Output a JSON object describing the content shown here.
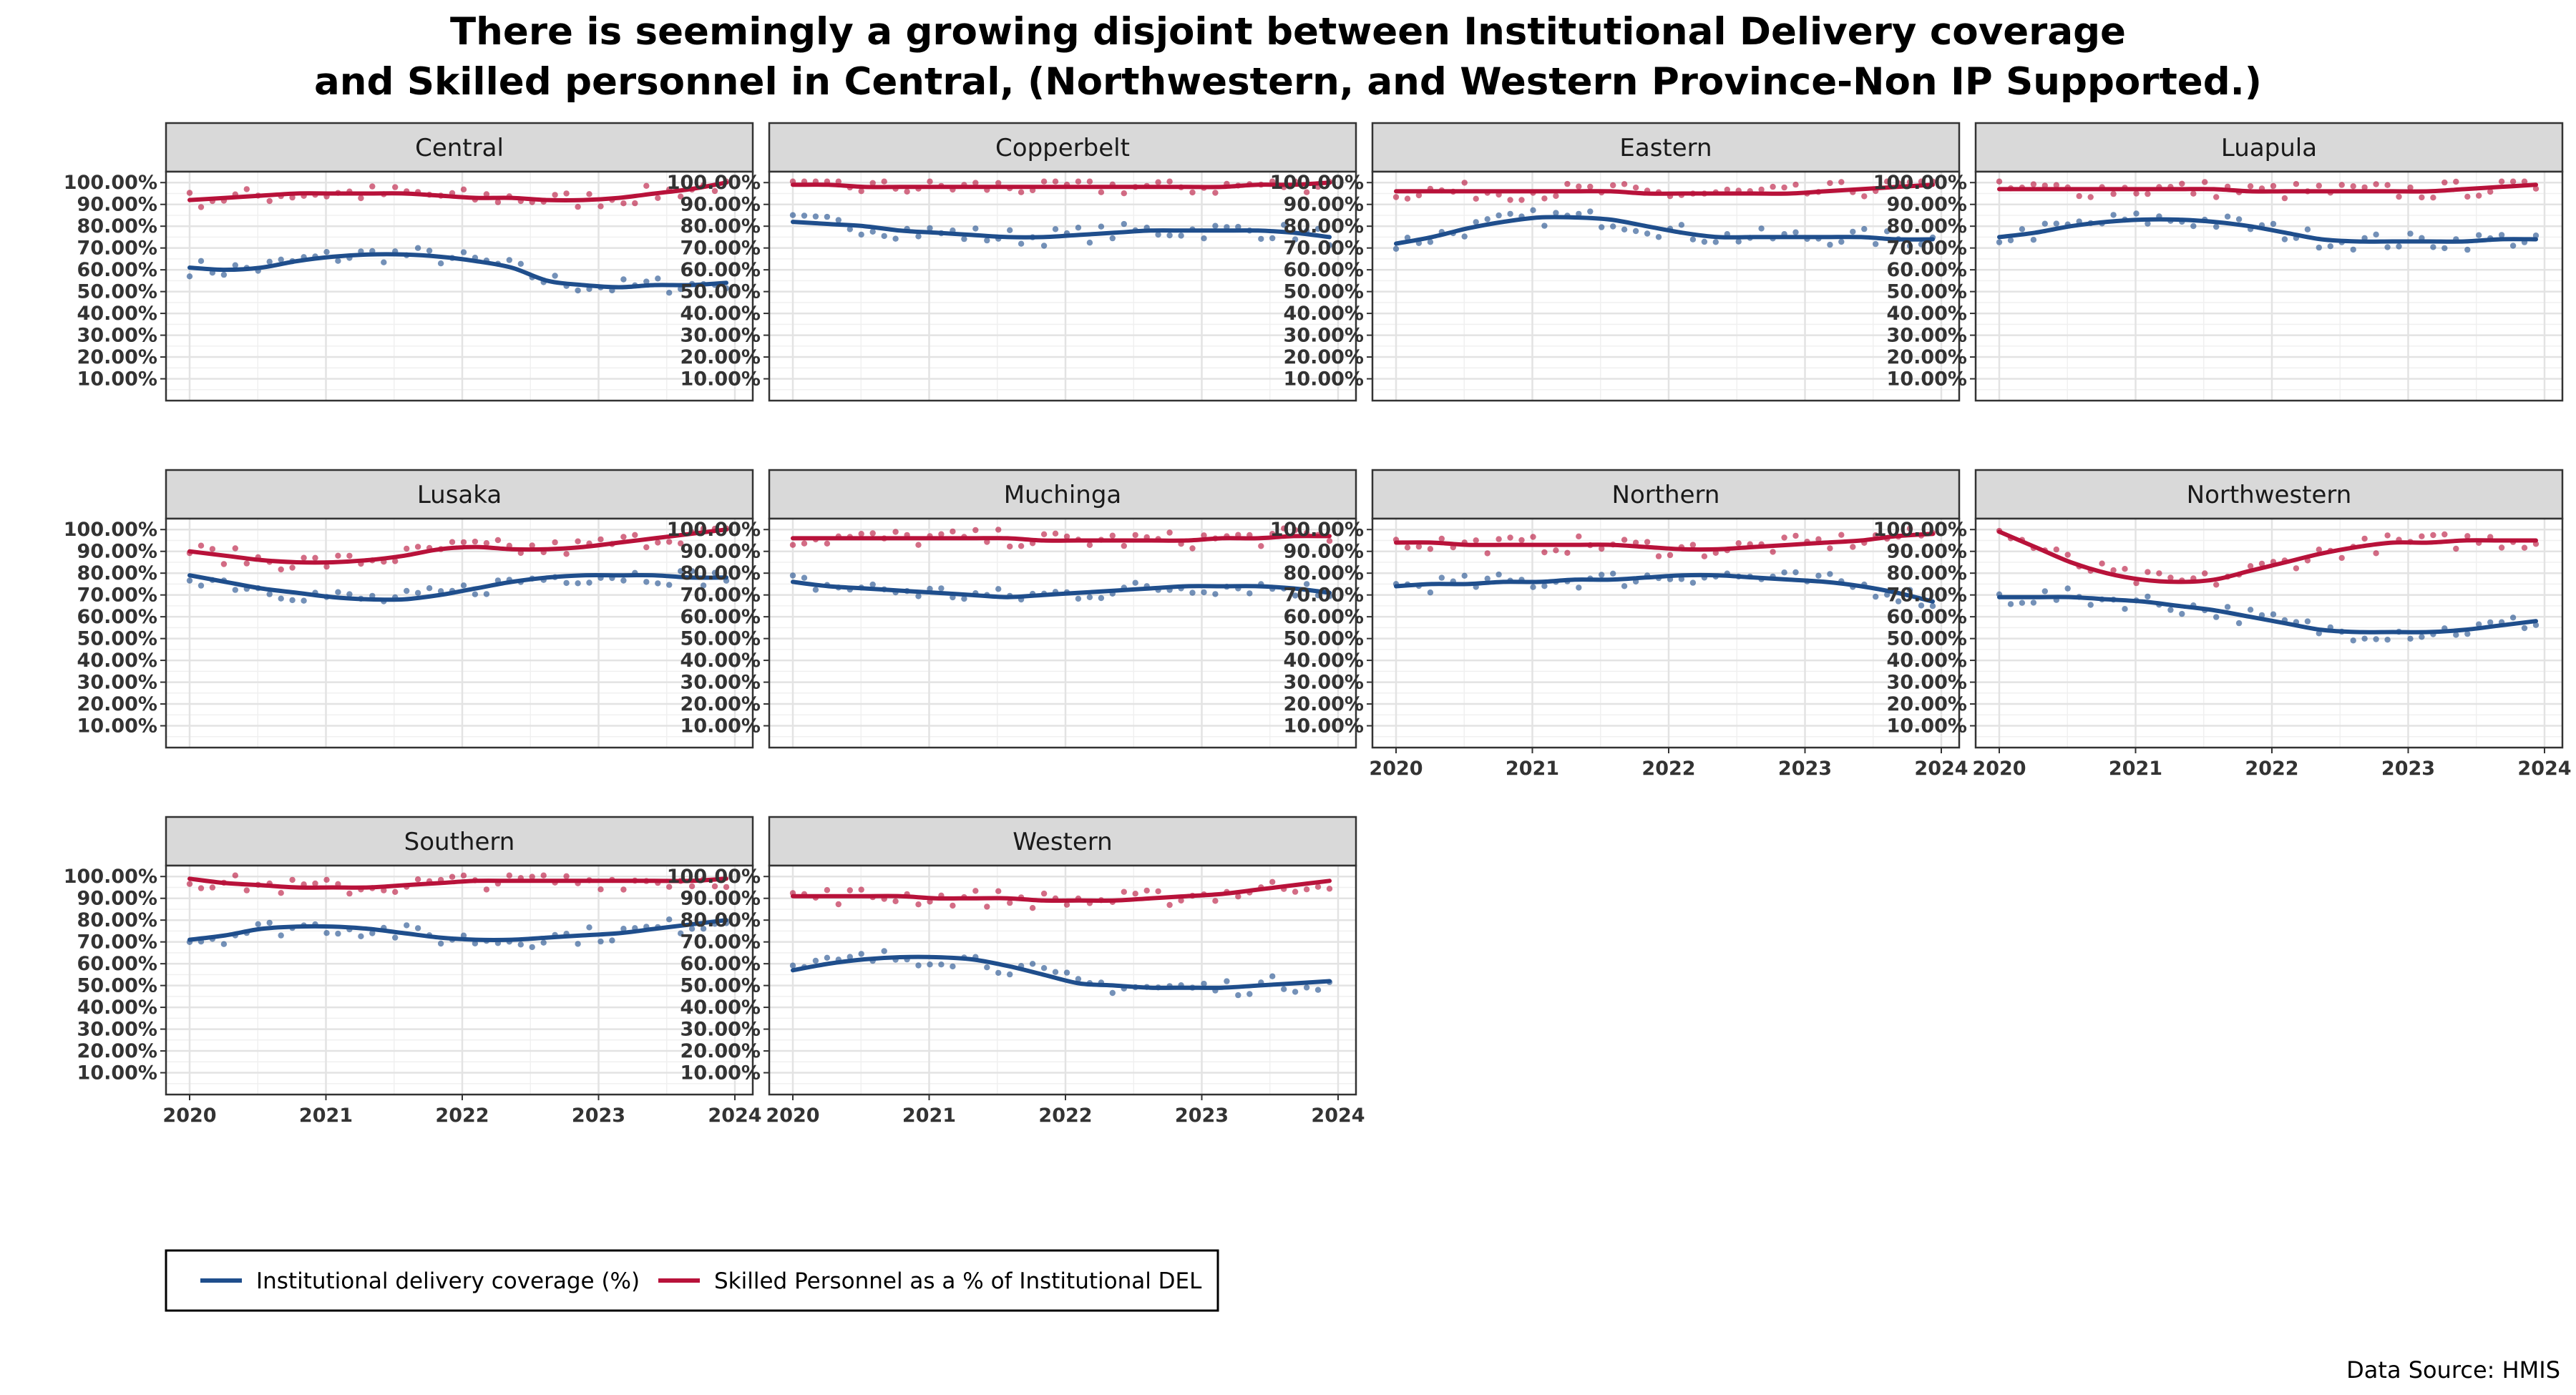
{
  "title": {
    "line1": "There is seemingly a growing disjoint between Institutional Delivery coverage",
    "line2": "and Skilled personnel in Central, (Northwestern, and Western Province-Non IP Supported.)"
  },
  "source": "Data Source: HMIS",
  "legend": {
    "entries": [
      {
        "label": "Institutional delivery coverage (%)",
        "color": "#1f4e8c"
      },
      {
        "label": "Skilled  Personnel as a % of Institutional DEL",
        "color": "#b8123a"
      }
    ]
  },
  "chart_data": {
    "type": "line",
    "layout": "faceted small multiples",
    "x_ticks": [
      "2020",
      "2021",
      "2022",
      "2023",
      "2024"
    ],
    "y_ticks": [
      "10.00%",
      "20.00%",
      "30.00%",
      "40.00%",
      "50.00%",
      "60.00%",
      "70.00%",
      "80.00%",
      "90.00%",
      "100.00%"
    ],
    "ylim": [
      0,
      105
    ],
    "grid": true,
    "legend_position": "bottom-left",
    "colors": {
      "coverage": "#1f4e8c",
      "skilled": "#b8123a"
    },
    "panels": [
      {
        "name": "Central",
        "coverage": [
          61,
          60,
          61,
          64,
          66,
          67,
          67,
          66,
          64,
          61,
          55,
          53,
          52,
          53,
          53,
          54
        ],
        "skilled": [
          92,
          93,
          94,
          95,
          95,
          95,
          95,
          94,
          93,
          93,
          92,
          92,
          93,
          95,
          97,
          100
        ]
      },
      {
        "name": "Copperbelt",
        "coverage": [
          82,
          81,
          80,
          78,
          77,
          76,
          75,
          75,
          76,
          77,
          78,
          78,
          78,
          78,
          77,
          75
        ],
        "skilled": [
          99,
          99,
          98,
          98,
          98,
          98,
          98,
          98,
          98,
          98,
          98,
          98,
          98,
          99,
          99,
          100
        ]
      },
      {
        "name": "Eastern",
        "coverage": [
          72,
          75,
          79,
          82,
          84,
          84,
          83,
          80,
          77,
          75,
          75,
          75,
          75,
          75,
          74,
          74
        ],
        "skilled": [
          96,
          96,
          96,
          96,
          96,
          96,
          96,
          95,
          95,
          95,
          95,
          95,
          96,
          97,
          98,
          99
        ]
      },
      {
        "name": "Luapula",
        "coverage": [
          75,
          77,
          80,
          82,
          83,
          83,
          82,
          80,
          77,
          74,
          73,
          73,
          73,
          73,
          74,
          74
        ],
        "skilled": [
          97,
          97,
          97,
          97,
          97,
          97,
          97,
          96,
          96,
          96,
          96,
          96,
          96,
          97,
          98,
          99
        ]
      },
      {
        "name": "Lusaka",
        "coverage": [
          79,
          76,
          73,
          71,
          69,
          68,
          68,
          70,
          73,
          76,
          78,
          79,
          79,
          79,
          78,
          78
        ],
        "skilled": [
          90,
          88,
          86,
          85,
          85,
          86,
          88,
          91,
          92,
          91,
          91,
          92,
          94,
          96,
          98,
          100
        ]
      },
      {
        "name": "Muchinga",
        "coverage": [
          76,
          74,
          73,
          72,
          71,
          70,
          69,
          70,
          71,
          72,
          73,
          74,
          74,
          74,
          73,
          71
        ],
        "skilled": [
          96,
          96,
          96,
          96,
          96,
          96,
          96,
          95,
          95,
          95,
          95,
          95,
          96,
          96,
          97,
          97
        ]
      },
      {
        "name": "Northern",
        "coverage": [
          74,
          75,
          75,
          76,
          76,
          77,
          77,
          78,
          79,
          79,
          78,
          77,
          76,
          74,
          71,
          67
        ],
        "skilled": [
          94,
          94,
          93,
          93,
          93,
          93,
          93,
          92,
          91,
          91,
          92,
          93,
          94,
          95,
          97,
          98
        ]
      },
      {
        "name": "Northwestern",
        "coverage": [
          69,
          69,
          69,
          68,
          67,
          65,
          63,
          60,
          57,
          54,
          53,
          53,
          53,
          54,
          56,
          58
        ],
        "skilled": [
          99,
          92,
          85,
          80,
          77,
          76,
          77,
          81,
          85,
          89,
          92,
          94,
          94,
          95,
          95,
          95
        ]
      },
      {
        "name": "Southern",
        "coverage": [
          71,
          73,
          76,
          77,
          77,
          76,
          74,
          72,
          71,
          71,
          72,
          73,
          74,
          76,
          78,
          80
        ],
        "skilled": [
          99,
          97,
          96,
          95,
          95,
          95,
          96,
          97,
          98,
          98,
          98,
          98,
          98,
          98,
          98,
          99
        ]
      },
      {
        "name": "Western",
        "coverage": [
          57,
          60,
          62,
          63,
          63,
          62,
          59,
          55,
          51,
          50,
          49,
          49,
          49,
          50,
          51,
          52
        ],
        "skilled": [
          91,
          91,
          91,
          91,
          90,
          90,
          90,
          89,
          89,
          89,
          90,
          91,
          92,
          94,
          96,
          98
        ]
      }
    ]
  }
}
